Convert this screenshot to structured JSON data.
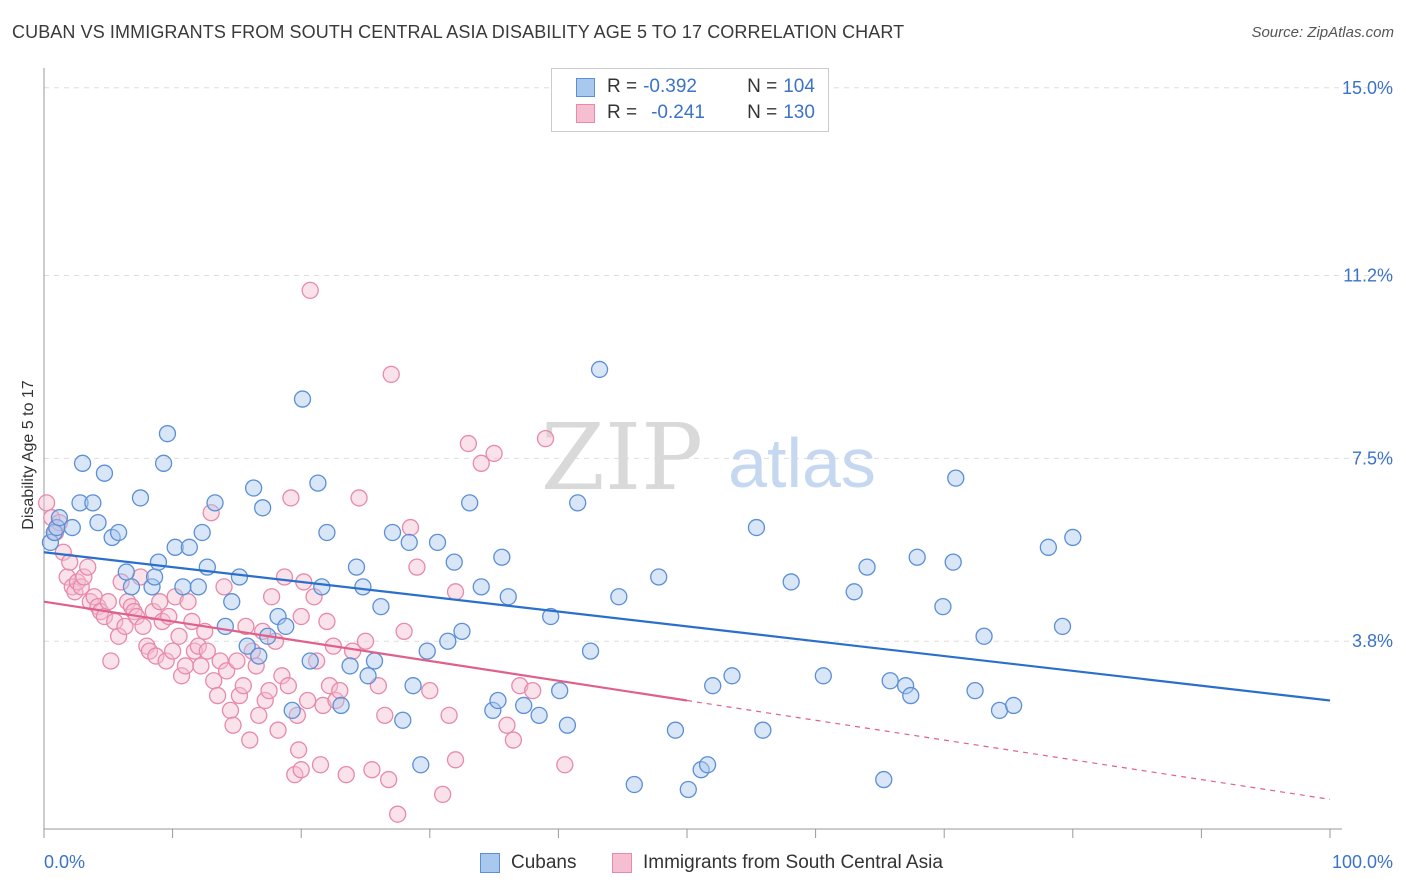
{
  "header": {
    "title": "CUBAN VS IMMIGRANTS FROM SOUTH CENTRAL ASIA DISABILITY AGE 5 TO 17 CORRELATION CHART",
    "source": "Source: ZipAtlas.com"
  },
  "watermark": {
    "zip": "ZIP",
    "atlas": "atlas"
  },
  "legend": {
    "rows": [
      {
        "r_label": "R = ",
        "r_value": "-0.392",
        "n_label": "N = ",
        "n_value": "104"
      },
      {
        "r_label": "R = ",
        "r_value": "-0.241",
        "n_label": "N = ",
        "n_value": "130"
      }
    ]
  },
  "bottom_legend": {
    "cubans": "Cubans",
    "immigrants": "Immigrants from South Central Asia"
  },
  "axes": {
    "ylabel": "Disability Age 5 to 17",
    "x_min_label": "0.0%",
    "x_max_label": "100.0%",
    "y_ticks": [
      "3.8%",
      "7.5%",
      "11.2%",
      "15.0%"
    ]
  },
  "colors": {
    "blue_fill": "#a9c8ee",
    "blue_stroke": "#5b8fd6",
    "blue_line": "#2a6fcb",
    "pink_fill": "#f5bfd1",
    "pink_stroke": "#e889aa",
    "pink_line": "#e0608c",
    "tick_label": "#3b73c8",
    "grid": "#dddddd"
  },
  "chart_data": {
    "type": "scatter",
    "xlabel": "",
    "ylabel": "Disability Age 5 to 17",
    "xlim": [
      0,
      100
    ],
    "ylim": [
      0,
      15.4
    ],
    "y_ticks": [
      3.8,
      7.5,
      11.2,
      15.0
    ],
    "grid": true,
    "legend_position": "top-center",
    "series": [
      {
        "name": "Cubans",
        "color": "#5b8fd6",
        "R": -0.392,
        "N": 104,
        "trend": {
          "x0": 0,
          "y0": 5.6,
          "x1": 100,
          "y1": 2.6,
          "dashed_from": null
        },
        "points": [
          [
            0.5,
            5.8
          ],
          [
            0.8,
            6.0
          ],
          [
            1.0,
            6.1
          ],
          [
            1.2,
            6.3
          ],
          [
            2.2,
            6.1
          ],
          [
            2.8,
            6.6
          ],
          [
            3.0,
            7.4
          ],
          [
            3.8,
            6.6
          ],
          [
            4.2,
            6.2
          ],
          [
            4.7,
            7.2
          ],
          [
            5.3,
            5.9
          ],
          [
            5.8,
            6.0
          ],
          [
            6.4,
            5.2
          ],
          [
            6.8,
            4.9
          ],
          [
            7.5,
            6.7
          ],
          [
            8.4,
            4.9
          ],
          [
            8.6,
            5.1
          ],
          [
            8.9,
            5.4
          ],
          [
            9.3,
            7.4
          ],
          [
            9.6,
            8.0
          ],
          [
            10.2,
            5.7
          ],
          [
            10.8,
            4.9
          ],
          [
            11.3,
            5.7
          ],
          [
            12.0,
            4.9
          ],
          [
            12.3,
            6.0
          ],
          [
            12.7,
            5.3
          ],
          [
            13.3,
            6.6
          ],
          [
            14.1,
            4.1
          ],
          [
            14.6,
            4.6
          ],
          [
            15.2,
            5.1
          ],
          [
            15.8,
            3.7
          ],
          [
            16.3,
            6.9
          ],
          [
            16.7,
            3.5
          ],
          [
            17.0,
            6.5
          ],
          [
            17.4,
            3.9
          ],
          [
            18.2,
            4.3
          ],
          [
            18.8,
            4.1
          ],
          [
            19.3,
            2.4
          ],
          [
            20.1,
            8.7
          ],
          [
            20.7,
            3.4
          ],
          [
            21.3,
            7.0
          ],
          [
            21.6,
            4.9
          ],
          [
            22.0,
            6.0
          ],
          [
            23.1,
            2.5
          ],
          [
            23.8,
            3.3
          ],
          [
            24.3,
            5.3
          ],
          [
            24.8,
            4.9
          ],
          [
            25.2,
            3.1
          ],
          [
            25.7,
            3.4
          ],
          [
            26.2,
            4.5
          ],
          [
            27.1,
            6.0
          ],
          [
            27.9,
            2.2
          ],
          [
            28.4,
            5.8
          ],
          [
            28.7,
            2.9
          ],
          [
            29.3,
            1.3
          ],
          [
            29.8,
            3.6
          ],
          [
            30.6,
            5.8
          ],
          [
            31.4,
            3.8
          ],
          [
            31.9,
            5.4
          ],
          [
            32.5,
            4.0
          ],
          [
            33.1,
            6.6
          ],
          [
            34.0,
            4.9
          ],
          [
            34.9,
            2.4
          ],
          [
            35.3,
            2.6
          ],
          [
            35.6,
            5.5
          ],
          [
            36.1,
            4.7
          ],
          [
            37.3,
            2.5
          ],
          [
            38.5,
            2.3
          ],
          [
            39.4,
            4.3
          ],
          [
            40.1,
            2.8
          ],
          [
            40.7,
            2.1
          ],
          [
            41.5,
            6.6
          ],
          [
            42.5,
            3.6
          ],
          [
            43.2,
            9.3
          ],
          [
            44.7,
            4.7
          ],
          [
            45.9,
            0.9
          ],
          [
            47.8,
            5.1
          ],
          [
            49.1,
            2.0
          ],
          [
            50.1,
            0.8
          ],
          [
            51.1,
            1.2
          ],
          [
            51.6,
            1.3
          ],
          [
            52.0,
            2.9
          ],
          [
            53.5,
            3.1
          ],
          [
            55.4,
            6.1
          ],
          [
            55.9,
            2.0
          ],
          [
            58.1,
            5.0
          ],
          [
            60.6,
            3.1
          ],
          [
            63.0,
            4.8
          ],
          [
            64.0,
            5.3
          ],
          [
            65.3,
            1.0
          ],
          [
            65.8,
            3.0
          ],
          [
            67.0,
            2.9
          ],
          [
            67.4,
            2.7
          ],
          [
            67.9,
            5.5
          ],
          [
            69.9,
            4.5
          ],
          [
            70.7,
            5.4
          ],
          [
            70.9,
            7.1
          ],
          [
            72.4,
            2.8
          ],
          [
            73.1,
            3.9
          ],
          [
            74.3,
            2.4
          ],
          [
            75.4,
            2.5
          ],
          [
            78.1,
            5.7
          ],
          [
            79.2,
            4.1
          ],
          [
            80.0,
            5.9
          ]
        ]
      },
      {
        "name": "Immigrants from South Central Asia",
        "color": "#e889aa",
        "R": -0.241,
        "N": 130,
        "trend": {
          "x0": 0,
          "y0": 4.6,
          "x1": 100,
          "y1": 0.6,
          "dashed_from": 50
        },
        "points": [
          [
            0.2,
            6.6
          ],
          [
            0.6,
            6.3
          ],
          [
            0.9,
            6.0
          ],
          [
            1.2,
            6.2
          ],
          [
            1.5,
            5.6
          ],
          [
            1.8,
            5.1
          ],
          [
            2.0,
            5.4
          ],
          [
            2.2,
            4.9
          ],
          [
            2.4,
            4.8
          ],
          [
            2.6,
            5.0
          ],
          [
            2.9,
            4.9
          ],
          [
            3.1,
            5.1
          ],
          [
            3.4,
            5.3
          ],
          [
            3.6,
            4.6
          ],
          [
            3.9,
            4.7
          ],
          [
            4.2,
            4.5
          ],
          [
            4.4,
            4.4
          ],
          [
            4.7,
            4.3
          ],
          [
            5.0,
            4.6
          ],
          [
            5.2,
            3.4
          ],
          [
            5.5,
            4.2
          ],
          [
            5.8,
            3.9
          ],
          [
            6.0,
            5.0
          ],
          [
            6.3,
            4.1
          ],
          [
            6.5,
            4.6
          ],
          [
            6.8,
            4.5
          ],
          [
            7.0,
            4.4
          ],
          [
            7.2,
            4.3
          ],
          [
            7.5,
            5.1
          ],
          [
            7.7,
            4.1
          ],
          [
            8.0,
            3.7
          ],
          [
            8.2,
            3.6
          ],
          [
            8.5,
            4.4
          ],
          [
            8.7,
            3.5
          ],
          [
            9.0,
            4.6
          ],
          [
            9.2,
            4.2
          ],
          [
            9.5,
            3.4
          ],
          [
            9.7,
            4.3
          ],
          [
            10.0,
            3.6
          ],
          [
            10.2,
            4.7
          ],
          [
            10.5,
            3.9
          ],
          [
            10.7,
            3.1
          ],
          [
            11.0,
            3.3
          ],
          [
            11.2,
            4.6
          ],
          [
            11.5,
            4.2
          ],
          [
            11.7,
            3.6
          ],
          [
            12.0,
            3.7
          ],
          [
            12.2,
            3.3
          ],
          [
            12.5,
            4.0
          ],
          [
            12.7,
            3.6
          ],
          [
            13.0,
            6.4
          ],
          [
            13.2,
            3.0
          ],
          [
            13.5,
            2.7
          ],
          [
            13.7,
            3.4
          ],
          [
            14.0,
            4.9
          ],
          [
            14.2,
            3.2
          ],
          [
            14.5,
            2.4
          ],
          [
            14.7,
            2.1
          ],
          [
            15.0,
            3.4
          ],
          [
            15.2,
            2.7
          ],
          [
            15.5,
            2.9
          ],
          [
            15.7,
            4.1
          ],
          [
            16.0,
            1.8
          ],
          [
            16.2,
            3.6
          ],
          [
            16.5,
            3.3
          ],
          [
            16.7,
            2.3
          ],
          [
            17.0,
            4.0
          ],
          [
            17.2,
            2.6
          ],
          [
            17.5,
            2.8
          ],
          [
            17.7,
            4.7
          ],
          [
            18.0,
            3.8
          ],
          [
            18.2,
            2.0
          ],
          [
            18.5,
            3.1
          ],
          [
            18.7,
            5.1
          ],
          [
            19.0,
            2.9
          ],
          [
            19.2,
            6.7
          ],
          [
            19.5,
            1.1
          ],
          [
            19.7,
            2.3
          ],
          [
            20.0,
            4.3
          ],
          [
            20.2,
            5.0
          ],
          [
            20.5,
            2.6
          ],
          [
            20.7,
            10.9
          ],
          [
            21.0,
            4.7
          ],
          [
            21.2,
            3.4
          ],
          [
            21.5,
            1.3
          ],
          [
            21.7,
            2.5
          ],
          [
            22.0,
            4.2
          ],
          [
            22.2,
            2.9
          ],
          [
            22.5,
            3.7
          ],
          [
            22.7,
            2.6
          ],
          [
            23.0,
            2.8
          ],
          [
            23.5,
            1.1
          ],
          [
            24.0,
            3.6
          ],
          [
            24.5,
            6.7
          ],
          [
            25.0,
            3.8
          ],
          [
            25.5,
            1.2
          ],
          [
            26.0,
            2.9
          ],
          [
            26.5,
            2.3
          ],
          [
            27.0,
            9.2
          ],
          [
            27.5,
            0.3
          ],
          [
            28.0,
            4.0
          ],
          [
            28.5,
            6.1
          ],
          [
            29.0,
            5.3
          ],
          [
            30.0,
            2.8
          ],
          [
            31.0,
            0.7
          ],
          [
            31.5,
            2.3
          ],
          [
            32.0,
            4.8
          ],
          [
            33.0,
            7.8
          ],
          [
            34.0,
            7.4
          ],
          [
            35.0,
            7.6
          ],
          [
            36.0,
            2.1
          ],
          [
            36.5,
            1.8
          ],
          [
            37.0,
            2.9
          ],
          [
            38.0,
            2.8
          ],
          [
            39.0,
            7.9
          ],
          [
            40.5,
            1.3
          ],
          [
            20.0,
            1.2
          ],
          [
            19.8,
            1.6
          ],
          [
            26.8,
            1.0
          ],
          [
            32.0,
            1.4
          ]
        ]
      }
    ]
  }
}
